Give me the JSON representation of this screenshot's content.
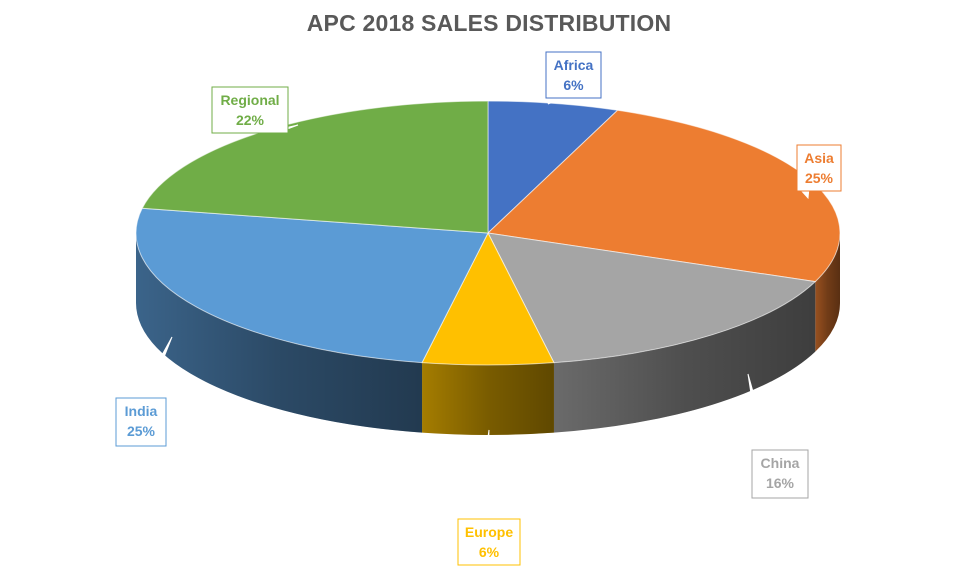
{
  "chart_data": {
    "type": "pie",
    "title": "APC 2018 SALES DISTRIBUTION",
    "slices": [
      {
        "name": "Africa",
        "value": 6,
        "label": "6%",
        "color": "#4472C4"
      },
      {
        "name": "Asia",
        "value": 25,
        "label": "25%",
        "color": "#ED7D31"
      },
      {
        "name": "China",
        "value": 16,
        "label": "16%",
        "color": "#A5A5A5"
      },
      {
        "name": "Europe",
        "value": 6,
        "label": "6%",
        "color": "#FFC000"
      },
      {
        "name": "India",
        "value": 25,
        "label": "25%",
        "color": "#5B9BD5"
      },
      {
        "name": "Regional",
        "value": 22,
        "label": "22%",
        "color": "#70AD47"
      }
    ],
    "style": "3d-pie",
    "legend": "none",
    "data_labels": "callouts with category name and percentage"
  }
}
